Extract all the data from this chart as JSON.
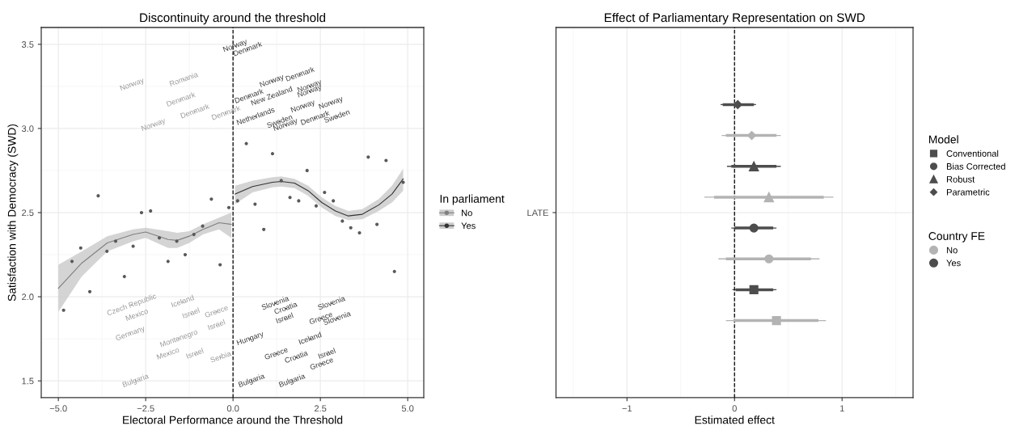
{
  "chart_data": [
    {
      "type": "scatter",
      "title": "Discontinuity around the threshold",
      "xlabel": "Electoral Performance around the Threshold",
      "ylabel": "Satisfaction with Democracy (SWD)",
      "legend_title": "In parliament",
      "legend": "right",
      "grid": true,
      "xlim": [
        -5.49,
        5.46
      ],
      "ylim": [
        1.4,
        3.6
      ],
      "xticks": [
        {
          "value": -5,
          "label": "−5.0"
        },
        {
          "value": -2.5,
          "label": "−2.5"
        },
        {
          "value": 0,
          "label": "0.0"
        },
        2.5,
        {
          "value": 5,
          "label": "5.0"
        }
      ],
      "yticks": [
        1.5,
        {
          "value": 2,
          "label": "2.0"
        },
        2.5,
        {
          "value": 3,
          "label": "3.0"
        },
        3.5
      ],
      "ref_lines": [
        {
          "axis": "x",
          "value": 0,
          "color": "#000000",
          "line_style": "dashed"
        }
      ],
      "series": [
        {
          "type": "scatter",
          "marker": "circle",
          "color": "#595959",
          "x": [
            -4.85,
            -4.61,
            -4.36,
            -4.1,
            -3.86,
            -3.61,
            -3.36,
            -3.11,
            -2.86,
            -2.62,
            -2.36,
            -2.11,
            -1.86,
            -1.61,
            -1.37,
            -1.12,
            -0.87,
            -0.62,
            -0.37,
            -0.12,
            0.13,
            0.38,
            0.63,
            0.88,
            1.13,
            1.38,
            1.63,
            1.88,
            2.12,
            2.38,
            2.62,
            2.87,
            3.13,
            3.37,
            3.62,
            3.87,
            4.12,
            4.38,
            4.62,
            4.87
          ],
          "values": [
            1.92,
            2.21,
            2.29,
            2.03,
            2.6,
            2.27,
            2.33,
            2.12,
            2.3,
            2.5,
            2.51,
            2.35,
            2.21,
            2.33,
            2.25,
            2.37,
            2.42,
            2.58,
            2.19,
            2.53,
            2.57,
            2.91,
            2.55,
            2.4,
            2.85,
            2.69,
            2.59,
            2.57,
            2.75,
            2.54,
            2.62,
            2.57,
            2.45,
            2.41,
            2.38,
            2.83,
            2.43,
            2.81,
            2.15,
            2.68
          ]
        },
        {
          "type": "line",
          "name": "No",
          "color": "#808080",
          "x": [
            -5.0,
            -4.33,
            -3.6,
            -2.86,
            -2.5,
            -1.86,
            -1.6,
            -1.25,
            -0.86,
            -0.4,
            -0.05
          ],
          "values": [
            2.05,
            2.2,
            2.32,
            2.37,
            2.385,
            2.34,
            2.335,
            2.36,
            2.4,
            2.44,
            2.43
          ],
          "lower": [
            1.91,
            2.12,
            2.27,
            2.33,
            2.35,
            2.29,
            2.29,
            2.32,
            2.37,
            2.4,
            2.35
          ],
          "upper": [
            2.19,
            2.27,
            2.36,
            2.4,
            2.41,
            2.39,
            2.38,
            2.39,
            2.43,
            2.47,
            2.5
          ]
        },
        {
          "type": "line",
          "name": "Yes",
          "color": "#333333",
          "x": [
            0.06,
            0.56,
            1.13,
            1.38,
            1.76,
            2.15,
            2.54,
            2.93,
            3.3,
            3.7,
            4.17,
            4.55,
            4.87
          ],
          "values": [
            2.61,
            2.655,
            2.68,
            2.685,
            2.675,
            2.63,
            2.56,
            2.51,
            2.48,
            2.49,
            2.545,
            2.61,
            2.7
          ],
          "lower": [
            2.55,
            2.62,
            2.65,
            2.655,
            2.645,
            2.6,
            2.53,
            2.48,
            2.455,
            2.46,
            2.51,
            2.56,
            2.63
          ],
          "upper": [
            2.66,
            2.69,
            2.71,
            2.715,
            2.7,
            2.66,
            2.59,
            2.54,
            2.51,
            2.52,
            2.58,
            2.66,
            2.76
          ]
        },
        {
          "type": "scatter",
          "marker": "none",
          "color": "#999999",
          "x": [
            -2.89,
            -1.41,
            -1.49,
            -2.28,
            -1.09,
            -0.2,
            -2.9,
            -2.75,
            -1.44,
            -1.2,
            -0.47,
            -0.47,
            -2.94,
            -1.55,
            -1.86,
            -1.09,
            -0.35,
            -2.79
          ],
          "values": [
            3.26,
            3.29,
            3.17,
            3.02,
            3.1,
            3.09,
            1.95,
            1.89,
            1.97,
            1.9,
            1.91,
            1.83,
            1.78,
            1.75,
            1.66,
            1.66,
            1.64,
            1.5
          ],
          "value_labels": [
            "Norway",
            "Romania",
            "Denmark",
            "Norway",
            "Denmark",
            "Denmark",
            "Czech Republic",
            "Mexico",
            "Iceland",
            "Israel",
            "Greece",
            "Israel",
            "Germany",
            "Montenegro",
            "Mexico",
            "Israel",
            "Serbia",
            "Bulgaria"
          ]
        },
        {
          "type": "scatter",
          "marker": "none",
          "color": "#3a3a3a",
          "x": [
            0.06,
            0.42,
            1.11,
            1.92,
            0.46,
            1.11,
            2.19,
            2.19,
            0.65,
            2.0,
            1.34,
            1.5,
            2.35,
            2.8,
            2.98,
            1.21,
            1.51,
            1.48,
            2.82,
            2.52,
            2.98,
            0.49,
            2.21,
            1.24,
            1.81,
            2.69,
            2.54,
            0.53,
            1.69
          ],
          "values": [
            3.49,
            3.47,
            3.28,
            3.32,
            3.19,
            3.19,
            3.25,
            3.22,
            3.07,
            3.13,
            3.04,
            3.02,
            3.06,
            3.15,
            3.07,
            1.96,
            1.93,
            1.87,
            1.96,
            1.87,
            1.87,
            1.75,
            1.75,
            1.66,
            1.64,
            1.66,
            1.6,
            1.5,
            1.5
          ],
          "value_labels": [
            "Norway",
            "Denmark",
            "Norway",
            "Denmark",
            "Denmark",
            "New Zealand",
            "Norway",
            "Norway",
            "Netherlands",
            "Norway",
            "Sweden",
            "Norway",
            "Denmark",
            "Norway",
            "Sweden",
            "Slovenia",
            "Croatia",
            "Israel",
            "Slovenia",
            "Greece",
            "Slovenia",
            "Hungary",
            "Iceland",
            "Greece",
            "Croatia",
            "Israel",
            "Greece",
            "Bulgaria",
            "Bulgaria"
          ]
        }
      ]
    },
    {
      "type": "scatter",
      "orientation": "horizontal",
      "title": "Effect of Parliamentary Representation on SWD",
      "xlabel": "Estimated effect",
      "legend_title": [
        "Model",
        "Country FE"
      ],
      "legend": "right",
      "grid": true,
      "categories": [
        null,
        null,
        null,
        null,
        null,
        null,
        null,
        null,
        null,
        null,
        null,
        null
      ],
      "xlim": [
        -1.66,
        1.66
      ],
      "xticks": [
        {
          "value": -1,
          "label": "−1"
        },
        0,
        1
      ],
      "annotations": [
        "LATE",
        "No",
        "Yes"
      ],
      "ref_lines": [
        {
          "axis": "x",
          "value": 0,
          "color": "#000000",
          "line_style": "dashed"
        }
      ],
      "series": [
        {
          "type": "bar",
          "base": [
            null,
            null,
            -0.11,
            -0.08,
            -0.03,
            -0.19,
            0.0,
            -0.08,
            0.01,
            -0.01,
            null,
            null
          ],
          "values": [
            null,
            null,
            0.29,
            0.47,
            0.42,
            1.02,
            0.36,
            0.79,
            0.35,
            0.79,
            null,
            null
          ],
          "colors": [
            null,
            null,
            "#4d4d4d",
            "#b3b3b3",
            "#4d4d4d",
            "#b3b3b3",
            "#4d4d4d",
            "#b3b3b3",
            "#4d4d4d",
            "#b3b3b3",
            null,
            null
          ]
        },
        {
          "name": "Conventional",
          "marker": "square",
          "values": [
            null,
            null,
            null,
            null,
            null,
            null,
            null,
            null,
            0.18,
            0.39,
            null,
            null
          ],
          "errors": [
            null,
            null,
            null,
            null,
            null,
            null,
            null,
            null,
            [
              -0.02,
              0.39
            ],
            [
              -0.08,
              0.85
            ],
            null,
            null
          ],
          "colors": [
            null,
            null,
            null,
            null,
            null,
            null,
            null,
            null,
            "#4d4d4d",
            "#b3b3b3",
            null,
            null
          ]
        },
        {
          "name": "Bias Corrected",
          "marker": "circle",
          "values": [
            null,
            null,
            null,
            null,
            null,
            null,
            0.18,
            0.32,
            null,
            null,
            null,
            null
          ],
          "errors": [
            null,
            null,
            null,
            null,
            null,
            null,
            [
              -0.03,
              0.39
            ],
            [
              -0.15,
              0.79
            ],
            null,
            null,
            null,
            null
          ],
          "colors": [
            null,
            null,
            null,
            null,
            null,
            null,
            "#4d4d4d",
            "#b3b3b3",
            null,
            null,
            null,
            null
          ]
        },
        {
          "name": "Robust",
          "marker": "triangle",
          "values": [
            null,
            null,
            null,
            null,
            0.18,
            0.32,
            null,
            null,
            null,
            null,
            null,
            null
          ],
          "errors": [
            null,
            null,
            null,
            null,
            [
              -0.07,
              0.43
            ],
            [
              -0.28,
              0.92
            ],
            null,
            null,
            null,
            null,
            null,
            null
          ],
          "colors": [
            null,
            null,
            null,
            null,
            "#4d4d4d",
            "#b3b3b3",
            null,
            null,
            null,
            null,
            null,
            null
          ]
        },
        {
          "name": "Parametric",
          "marker": "diamond",
          "values": [
            null,
            null,
            0.03,
            0.16,
            null,
            null,
            null,
            null,
            null,
            null,
            null,
            null
          ],
          "errors": [
            null,
            null,
            [
              -0.13,
              0.2
            ],
            [
              -0.12,
              0.43
            ],
            null,
            null,
            null,
            null,
            null,
            null,
            null,
            null
          ],
          "colors": [
            null,
            null,
            "#4d4d4d",
            "#b3b3b3",
            null,
            null,
            null,
            null,
            null,
            null,
            null,
            null
          ]
        }
      ]
    }
  ]
}
